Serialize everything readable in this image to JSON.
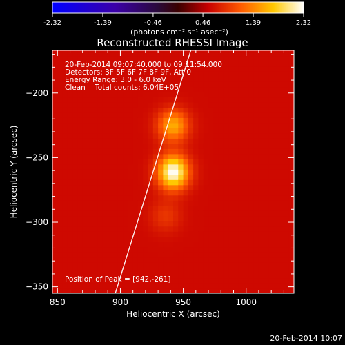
{
  "chart_data": {
    "type": "heatmap",
    "title": "Reconstructed RHESSI Image",
    "xlabel": "Heliocentric X (arcsec)",
    "ylabel": "Heliocentric Y (arcsec)",
    "xlim": [
      846,
      1038
    ],
    "ylim": [
      -355,
      -167
    ],
    "xticks": [
      850,
      900,
      950,
      1000
    ],
    "yticks": [
      -200,
      -250,
      -300,
      -350
    ],
    "grid": false,
    "colorbar": {
      "min": -2.32,
      "max": 2.32,
      "ticks": [
        "-2.32",
        "-1.39",
        "-0.46",
        "0.46",
        "1.39",
        "2.32"
      ],
      "label": "(photons cm⁻² s⁻¹ asec⁻²)"
    },
    "annotations": [
      "20-Feb-2014 09:07:40.000 to 09:11:54.000",
      "Detectors: 3F 5F 6F 7F 8F 9F, Att 0",
      "Energy Range: 3.0 - 6.0 keV",
      "Clean    Total counts: 6.04E+05"
    ],
    "peak_label": "Position of Peak = [942,-261]",
    "peak": [
      942,
      -261
    ],
    "sources": [
      {
        "x": 942,
        "y": -261,
        "amp": 2.32
      },
      {
        "x": 942,
        "y": -225,
        "amp": 1.6
      },
      {
        "x": 936,
        "y": -295,
        "amp": 0.9
      }
    ],
    "limb_line": [
      [
        896,
        -355
      ],
      [
        956,
        -167
      ]
    ]
  },
  "footer_timestamp": "20-Feb-2014 10:07",
  "colors": {
    "background": "#000000",
    "text": "#ffffff",
    "colormap": "IDL Rainbow+White / hot-like"
  }
}
